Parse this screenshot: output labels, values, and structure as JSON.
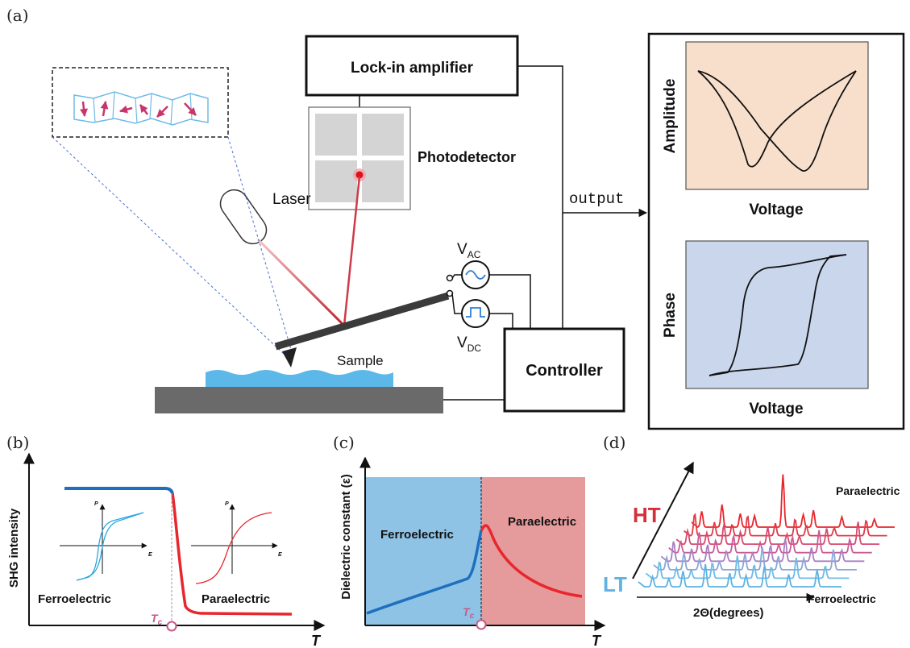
{
  "panels": {
    "a": {
      "label": "(a)",
      "lockin": "Lock-in amplifier",
      "photodetector": "Photodetector",
      "laser": "Laser",
      "sample": "Sample",
      "controller": "Controller",
      "output": "output",
      "vac_main": "V",
      "vac_sub": "AC",
      "vdc_main": "V",
      "vdc_sub": "DC",
      "amp_ylabel": "Amplitude",
      "amp_xlabel": "Voltage",
      "phase_ylabel": "Phase",
      "phase_xlabel": "Voltage"
    },
    "b": {
      "label": "(b)",
      "ylabel": "SHG intensity",
      "xlabel": "T",
      "tc": "T",
      "tc_sub": "c",
      "ferro": "Ferroelectric",
      "para": "Paraelectric",
      "p_axis": "P",
      "e_axis": "E"
    },
    "c": {
      "label": "(c)",
      "ylabel": "Dielectric constant  (ε)",
      "xlabel": "T",
      "tc": "T",
      "tc_sub": "c",
      "ferro": "Ferroelectric",
      "para": "Paraelectric"
    },
    "d": {
      "label": "(d)",
      "ht": "HT",
      "lt": "LT",
      "para": "Paraelectric",
      "ferro": "Ferroelectric",
      "xlabel": "2Θ(degrees)"
    }
  },
  "colors": {
    "amp_bg": "#f8dfcc",
    "phase_bg": "#c9d6ec",
    "ferro_bg": "#8ec3e6",
    "para_bg": "#e59a9b",
    "water": "#5bb8e8",
    "red": "#e8262d",
    "blue": "#1f6fbf",
    "tc": "#c45b8a"
  }
}
